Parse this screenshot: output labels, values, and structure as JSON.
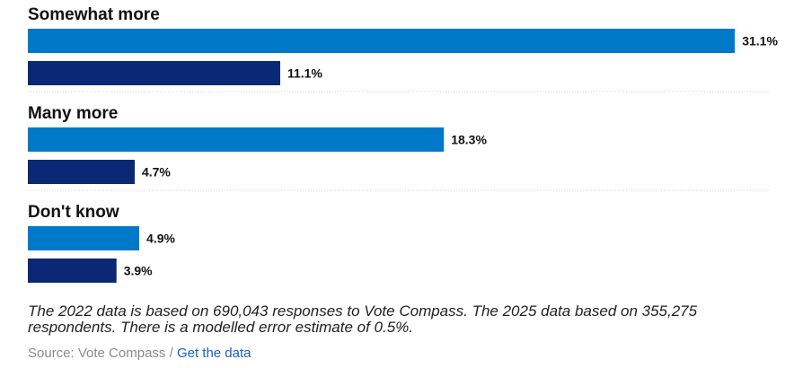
{
  "chart_data": {
    "type": "bar",
    "orientation": "horizontal",
    "grid": false,
    "xlim": [
      0,
      32
    ],
    "categories": [
      "Somewhat more",
      "Many more",
      "Don't know"
    ],
    "series": [
      {
        "values": [
          31.1,
          18.3,
          4.9
        ],
        "labels": [
          "31.1%",
          "18.3%",
          "4.9%"
        ],
        "color": "#0079c8"
      },
      {
        "values": [
          11.1,
          4.7,
          3.9
        ],
        "labels": [
          "11.1%",
          "4.7%",
          "3.9%"
        ],
        "color": "#0a2873"
      }
    ]
  },
  "footnote": "The 2022 data is based on 690,043 responses to Vote Compass. The 2025 data based on 355,275 respondents. There is a modelled error estimate of 0.5%.",
  "source": {
    "prefix": "Source: Vote Compass",
    "separator": " / ",
    "link_label": "Get the data"
  }
}
